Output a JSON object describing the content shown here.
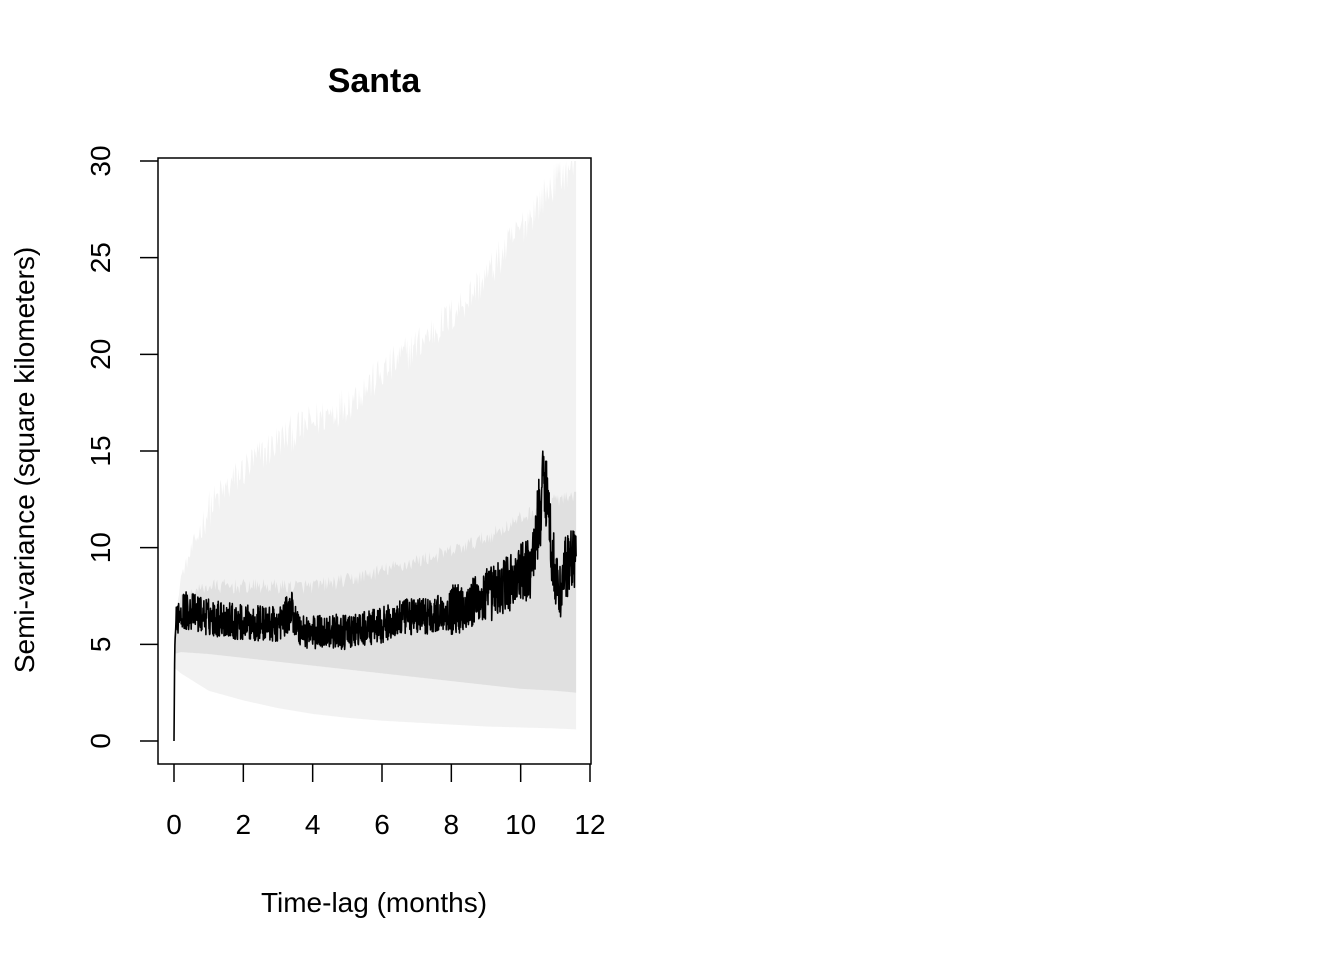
{
  "chart_data": {
    "type": "line",
    "title": "Santa",
    "xlabel": "Time-lag (months)",
    "ylabel": "Semi-variance (square kilometers)",
    "xlim": [
      0,
      12
    ],
    "ylim": [
      0,
      30
    ],
    "xticks": [
      "0",
      "2",
      "4",
      "6",
      "8",
      "10",
      "12"
    ],
    "yticks": [
      "0",
      "5",
      "10",
      "15",
      "20",
      "25",
      "30"
    ],
    "grid": false,
    "legend": "none",
    "series": [
      {
        "role": "semi-variance",
        "color": "#000000",
        "x": [
          0,
          0.02,
          0.05,
          0.1,
          0.2,
          0.5,
          1,
          1.5,
          2,
          2.5,
          3,
          3.4,
          3.6,
          4,
          4.5,
          5,
          5.5,
          6,
          6.5,
          7,
          7.5,
          8,
          8.5,
          9,
          9.5,
          10,
          10.3,
          10.6,
          10.7,
          10.9,
          11.1,
          11.3,
          11.5,
          11.6
        ],
        "y": [
          0,
          4.8,
          5.8,
          6.5,
          6.8,
          6.7,
          6.4,
          6.3,
          6.1,
          6.1,
          6.0,
          6.8,
          5.8,
          5.6,
          5.7,
          5.6,
          5.8,
          6.0,
          6.3,
          6.5,
          6.5,
          6.8,
          7.0,
          7.5,
          8.0,
          8.6,
          9.0,
          12.5,
          14.0,
          9.8,
          7.5,
          9.0,
          9.5,
          9.0
        ]
      }
    ],
    "bands": [
      {
        "role": "outer envelope",
        "color": "#f2f2f2",
        "x": [
          0,
          0.2,
          1,
          2,
          3,
          4,
          5,
          6,
          7,
          8,
          9,
          10,
          11,
          11.6
        ],
        "upper": [
          5.5,
          8.5,
          12.0,
          14.0,
          15.5,
          16.5,
          17.5,
          19.0,
          20.5,
          22.0,
          24.0,
          26.5,
          29.0,
          30.0
        ],
        "lower": [
          3.8,
          3.5,
          2.6,
          2.1,
          1.7,
          1.4,
          1.2,
          1.05,
          0.95,
          0.85,
          0.75,
          0.7,
          0.65,
          0.6
        ]
      },
      {
        "role": "inner envelope",
        "color": "#e0e0e0",
        "x": [
          0,
          0.2,
          1,
          2,
          3,
          4,
          5,
          6,
          7,
          8,
          9,
          10,
          11,
          11.6
        ],
        "upper": [
          5.4,
          7.5,
          8.0,
          8.0,
          8.0,
          8.0,
          8.3,
          8.8,
          9.3,
          9.8,
          10.5,
          11.5,
          12.5,
          12.5
        ],
        "lower": [
          4.5,
          4.6,
          4.5,
          4.3,
          4.1,
          3.9,
          3.7,
          3.5,
          3.3,
          3.1,
          2.9,
          2.7,
          2.6,
          2.5
        ]
      }
    ]
  }
}
